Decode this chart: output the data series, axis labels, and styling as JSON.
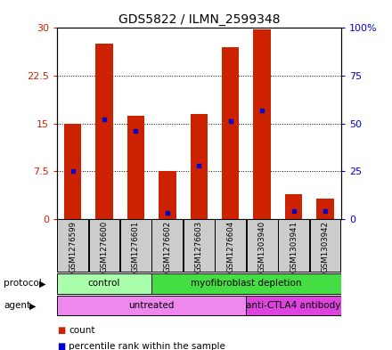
{
  "title": "GDS5822 / ILMN_2599348",
  "samples": [
    "GSM1276599",
    "GSM1276600",
    "GSM1276601",
    "GSM1276602",
    "GSM1276603",
    "GSM1276604",
    "GSM1303940",
    "GSM1303941",
    "GSM1303942"
  ],
  "counts": [
    14.9,
    27.5,
    16.2,
    7.5,
    16.5,
    27.0,
    29.8,
    3.8,
    3.2
  ],
  "percentile_ranks": [
    25,
    52,
    46,
    3,
    28,
    51,
    57,
    4,
    4
  ],
  "bar_color": "#cc2200",
  "marker_color": "#0000cc",
  "ylim_left": [
    0,
    30
  ],
  "ylim_right": [
    0,
    100
  ],
  "yticks_left": [
    0,
    7.5,
    15,
    22.5,
    30
  ],
  "ytick_labels_left": [
    "0",
    "7.5",
    "15",
    "22.5",
    "30"
  ],
  "yticks_right": [
    0,
    25,
    50,
    75,
    100
  ],
  "ytick_labels_right": [
    "0",
    "25",
    "50",
    "75",
    "100%"
  ],
  "protocol_data": [
    [
      "control",
      0,
      3,
      "#aaffaa"
    ],
    [
      "myofibroblast depletion",
      3,
      9,
      "#44dd44"
    ]
  ],
  "agent_data": [
    [
      "untreated",
      0,
      6,
      "#ee88ee"
    ],
    [
      "anti-CTLA4 antibody",
      6,
      9,
      "#dd44dd"
    ]
  ],
  "tick_color_left": "#cc2200",
  "tick_color_right": "#0000cc",
  "bar_width": 0.55,
  "sample_box_color": "#cccccc",
  "legend_items": [
    [
      "count",
      "#cc2200"
    ],
    [
      "percentile rank within the sample",
      "#0000cc"
    ]
  ]
}
